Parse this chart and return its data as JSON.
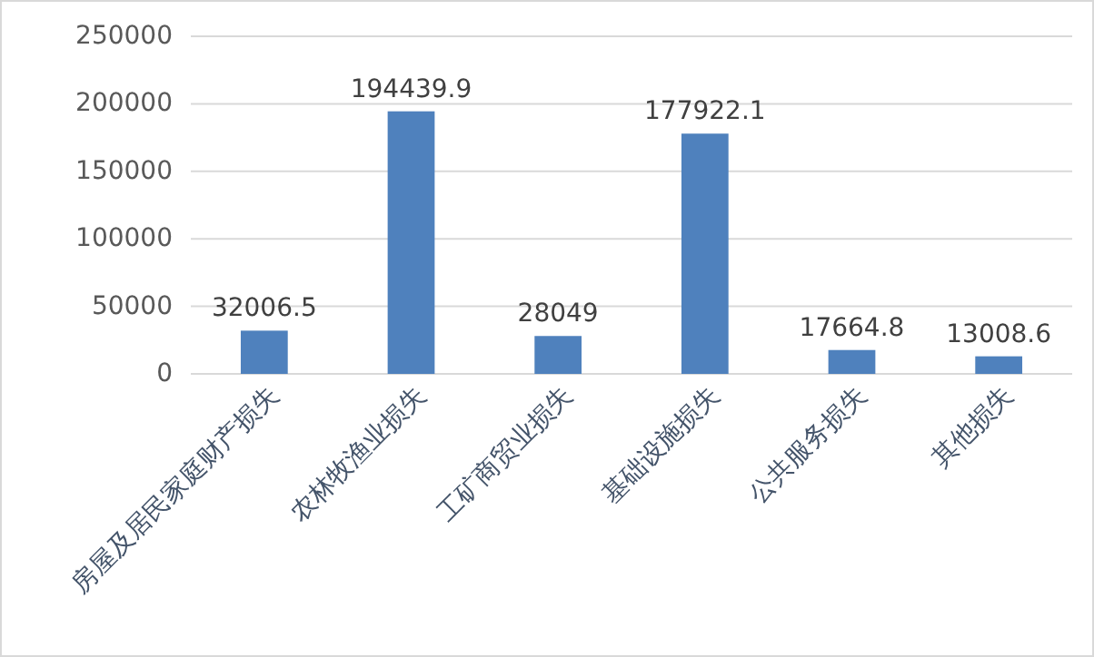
{
  "chart_data": {
    "type": "bar",
    "categories": [
      "房屋及居民家庭财产损失",
      "农林牧渔业损失",
      "工矿商贸业损失",
      "基础设施损失",
      "公共服务损失",
      "其他损失"
    ],
    "values": [
      32006.5,
      194439.9,
      28049,
      177922.1,
      17664.8,
      13008.6
    ],
    "color": "#4f81bd",
    "ylim": [
      0,
      250000
    ],
    "yticks": [
      0,
      50000,
      100000,
      150000,
      200000,
      250000
    ],
    "grid": "y",
    "data_labels": true
  }
}
